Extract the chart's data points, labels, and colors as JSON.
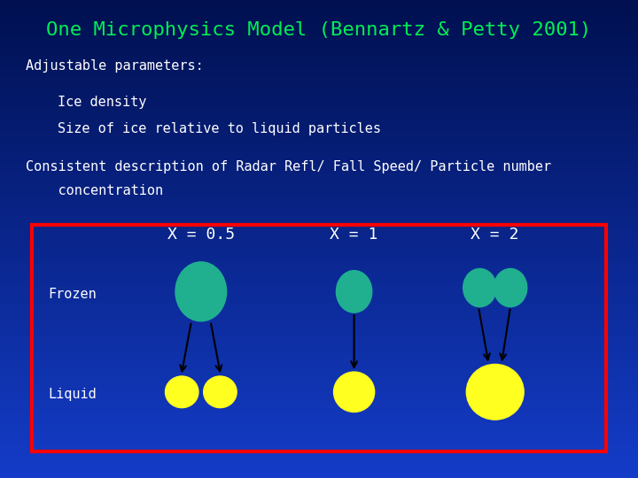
{
  "title": "One Microphysics Model (Bennartz & Petty 2001)",
  "title_color": "#00EE55",
  "title_fontsize": 16,
  "bg_color": "#0030C0",
  "bg_top_color": "#001060",
  "text_color": "white",
  "text_fontsize": 11,
  "box_color": "red",
  "frozen_color": "#20B090",
  "liquid_color": "#FFFF20",
  "arrow_color": "#000000",
  "labels": {
    "adj_params": "Adjustable parameters:",
    "ice_density": "Ice density",
    "ice_size": "Size of ice relative to liquid particles",
    "consistent_1": "Consistent description of Radar Refl/ Fall Speed/ Particle number",
    "consistent_2": "    concentration",
    "frozen": "Frozen",
    "liquid": "Liquid",
    "x05": "X = 0.5",
    "x1": "X = 1",
    "x2": "X = 2"
  }
}
